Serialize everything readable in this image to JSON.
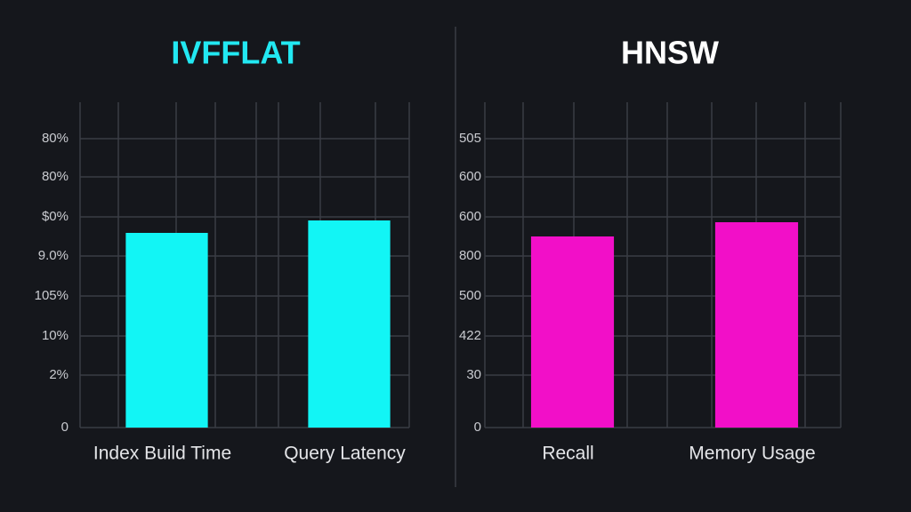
{
  "chart_data": [
    {
      "type": "bar",
      "title": "IVFFLAT",
      "title_color": "#22e8f2",
      "categories": [
        "Index Build Time",
        "Query Latency"
      ],
      "values": [
        219,
        233
      ],
      "color": "#12f5f5",
      "ylim": [
        0,
        366
      ],
      "yticks": [
        0,
        {
          "value": 59,
          "label": "2%"
        },
        {
          "value": 103,
          "label": "10%"
        },
        {
          "value": 148,
          "label": "105%"
        },
        {
          "value": 193,
          "label": "9.0%"
        },
        {
          "value": 237,
          "label": "$0%"
        },
        {
          "value": 282,
          "label": "80%"
        },
        {
          "value": 325,
          "label": "80%"
        }
      ],
      "grid": true
    },
    {
      "type": "bar",
      "title": "HNSW",
      "title_color": "#ffffff",
      "categories": [
        "Recall",
        "Memory Usage"
      ],
      "values": [
        215,
        231
      ],
      "color": "#f20fc8",
      "ylim": [
        0,
        366
      ],
      "yticks": [
        0,
        {
          "value": 59,
          "label": "30"
        },
        {
          "value": 103,
          "label": "422"
        },
        {
          "value": 148,
          "label": "500"
        },
        {
          "value": 193,
          "label": "800"
        },
        {
          "value": 237,
          "label": "600"
        },
        {
          "value": 282,
          "label": "600"
        },
        {
          "value": 325,
          "label": "505"
        }
      ],
      "grid": true
    }
  ]
}
